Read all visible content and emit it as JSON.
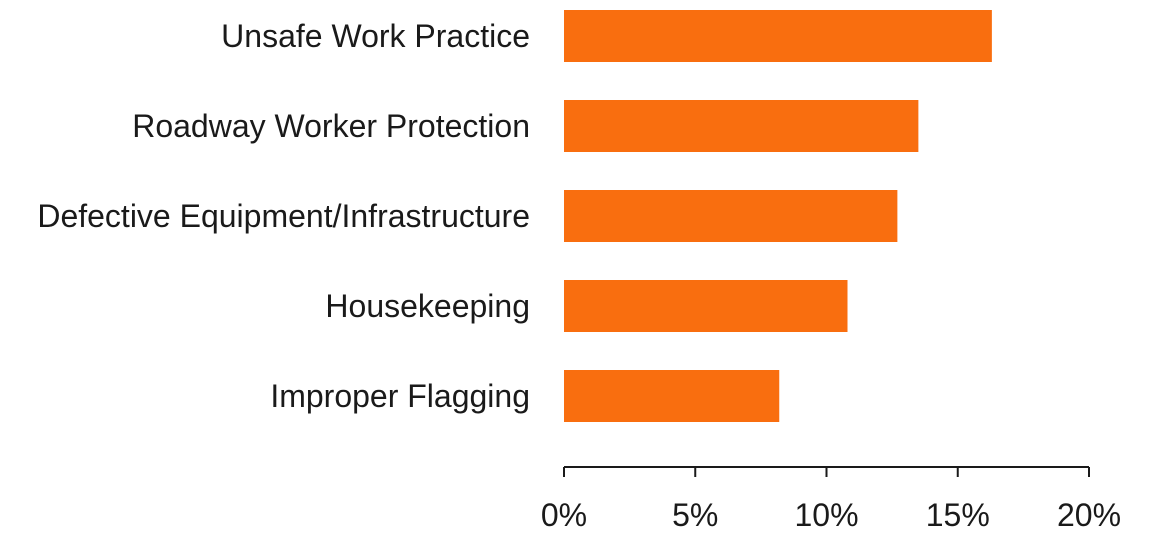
{
  "chart_data": {
    "type": "bar",
    "orientation": "horizontal",
    "title": "",
    "xlabel": "",
    "ylabel": "",
    "categories": [
      "Unsafe Work Practice",
      "Roadway Worker Protection",
      "Defective Equipment/Infrastructure",
      "Housekeeping",
      "Improper Flagging"
    ],
    "values": [
      16.3,
      13.5,
      12.7,
      10.8,
      8.2
    ],
    "unit": "%",
    "xlim": [
      0,
      20
    ],
    "xticks": [
      0,
      5,
      10,
      15,
      20
    ],
    "xtick_labels": [
      "0%",
      "5%",
      "10%",
      "15%",
      "20%"
    ],
    "bar_color": "#F96E0F",
    "grid": false,
    "legend": "none"
  }
}
